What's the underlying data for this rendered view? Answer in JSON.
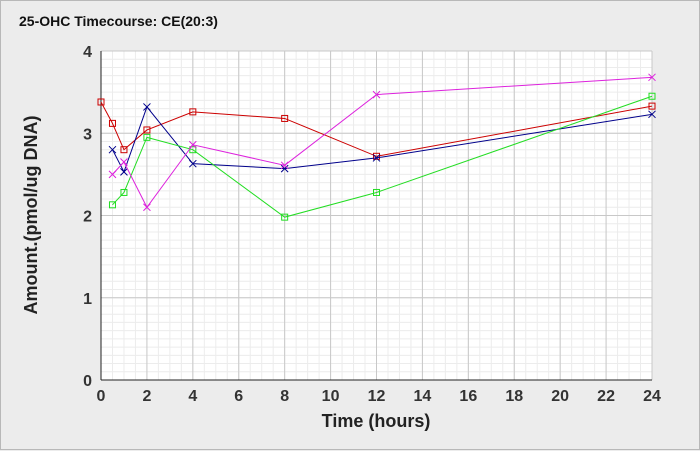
{
  "chart_data": {
    "type": "line",
    "title": "25-OHC Timecourse: CE(20:3)",
    "xlabel": "Time (hours)",
    "ylabel": "Amount.(pmol/ug DNA)",
    "xlim": [
      0,
      24
    ],
    "ylim": [
      0,
      4
    ],
    "xticks": [
      0,
      2,
      4,
      6,
      8,
      10,
      12,
      14,
      16,
      18,
      20,
      22,
      24
    ],
    "yticks": [
      0,
      1,
      2,
      3,
      4
    ],
    "grid": true,
    "legend": "none",
    "series": [
      {
        "color": "#cc0000",
        "marker": "square",
        "points": [
          [
            0,
            3.38
          ],
          [
            0.5,
            3.12
          ],
          [
            1,
            2.8
          ],
          [
            2,
            3.04
          ],
          [
            4,
            3.26
          ],
          [
            8,
            3.18
          ],
          [
            12,
            2.72
          ],
          [
            24,
            3.33
          ]
        ]
      },
      {
        "color": "#00008b",
        "marker": "x",
        "points": [
          [
            0.5,
            2.8
          ],
          [
            1,
            2.53
          ],
          [
            2,
            3.32
          ],
          [
            4,
            2.63
          ],
          [
            8,
            2.57
          ],
          [
            12,
            2.7
          ],
          [
            24,
            3.23
          ]
        ]
      },
      {
        "color": "#22dd22",
        "marker": "square",
        "points": [
          [
            0.5,
            2.13
          ],
          [
            1,
            2.28
          ],
          [
            2,
            2.95
          ],
          [
            4,
            2.8
          ],
          [
            8,
            1.98
          ],
          [
            12,
            2.28
          ],
          [
            24,
            3.45
          ]
        ]
      },
      {
        "color": "#dd22dd",
        "marker": "x",
        "points": [
          [
            0.5,
            2.5
          ],
          [
            1,
            2.65
          ],
          [
            2,
            2.1
          ],
          [
            4,
            2.86
          ],
          [
            8,
            2.61
          ],
          [
            12,
            3.47
          ],
          [
            24,
            3.68
          ]
        ]
      }
    ]
  }
}
